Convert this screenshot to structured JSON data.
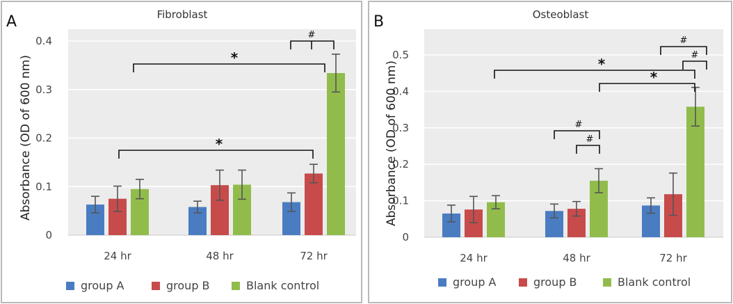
{
  "colors": {
    "group_a": "#4a7cc1",
    "group_b": "#c84b4b",
    "blank_control": "#91bc4c",
    "plot_bg": "#ececec",
    "gridline": "#ffffff",
    "error_bar": "#555555"
  },
  "chart_data": [
    {
      "panel": "A",
      "type": "bar",
      "title": "Fibroblast",
      "ylabel": "Absorbance (OD of 600 nm)",
      "xlabel": "",
      "ylim": [
        0,
        0.4
      ],
      "yticks": [
        0,
        0.1,
        0.2,
        0.3,
        0.4
      ],
      "ytick_labels": [
        "0",
        "0.1",
        "0.2",
        "0.3",
        "0.4"
      ],
      "categories": [
        "24 hr",
        "48 hr",
        "72 hr"
      ],
      "series": [
        {
          "name": "group A",
          "values": [
            0.063,
            0.058,
            0.068
          ],
          "errors": [
            0.017,
            0.012,
            0.019
          ]
        },
        {
          "name": "group B",
          "values": [
            0.075,
            0.103,
            0.127
          ],
          "errors": [
            0.026,
            0.031,
            0.019
          ]
        },
        {
          "name": "Blank control",
          "values": [
            0.095,
            0.104,
            0.334
          ],
          "errors": [
            0.02,
            0.03,
            0.039
          ]
        }
      ],
      "grid": true,
      "legend": "bottom",
      "annotations": [
        {
          "symbol": "*",
          "from": [
            0,
            0
          ],
          "to": [
            2,
            1
          ]
        },
        {
          "symbol": "*",
          "from": [
            0,
            0
          ],
          "to": [
            2,
            2
          ]
        },
        {
          "symbol": "#",
          "from": [
            2,
            0
          ],
          "to": [
            2,
            2
          ],
          "via": [
            2,
            1
          ]
        }
      ]
    },
    {
      "panel": "B",
      "type": "bar",
      "title": "Osteoblast",
      "ylabel": "Absorbance (OD of 600 nm)",
      "xlabel": "",
      "ylim": [
        0,
        0.5
      ],
      "yticks": [
        0,
        0.1,
        0.2,
        0.3,
        0.4,
        0.5
      ],
      "ytick_labels": [
        "0",
        "0.1",
        "0.2",
        "0.3",
        "0.4",
        "0.5"
      ],
      "categories": [
        "24 hr",
        "48 hr",
        "72 hr"
      ],
      "series": [
        {
          "name": "group A",
          "values": [
            0.065,
            0.072,
            0.087
          ],
          "errors": [
            0.023,
            0.019,
            0.021
          ]
        },
        {
          "name": "group B",
          "values": [
            0.076,
            0.078,
            0.118
          ],
          "errors": [
            0.036,
            0.02,
            0.058
          ]
        },
        {
          "name": "Blank control",
          "values": [
            0.096,
            0.155,
            0.358
          ],
          "errors": [
            0.018,
            0.033,
            0.053
          ]
        }
      ],
      "grid": true,
      "legend": "bottom",
      "annotations": [
        {
          "symbol": "#",
          "from": [
            1,
            0
          ],
          "to": [
            1,
            2
          ]
        },
        {
          "symbol": "#",
          "from": [
            1,
            1
          ],
          "to": [
            1,
            2
          ]
        },
        {
          "symbol": "*",
          "from": [
            0,
            0
          ],
          "to": [
            2,
            2
          ]
        },
        {
          "symbol": "*",
          "from": [
            1,
            2
          ],
          "to": [
            2,
            2
          ]
        },
        {
          "symbol": "#",
          "from": [
            2,
            0
          ],
          "to": [
            2,
            2
          ]
        },
        {
          "symbol": "#",
          "from": [
            2,
            1
          ],
          "to": [
            2,
            2
          ]
        }
      ]
    }
  ]
}
